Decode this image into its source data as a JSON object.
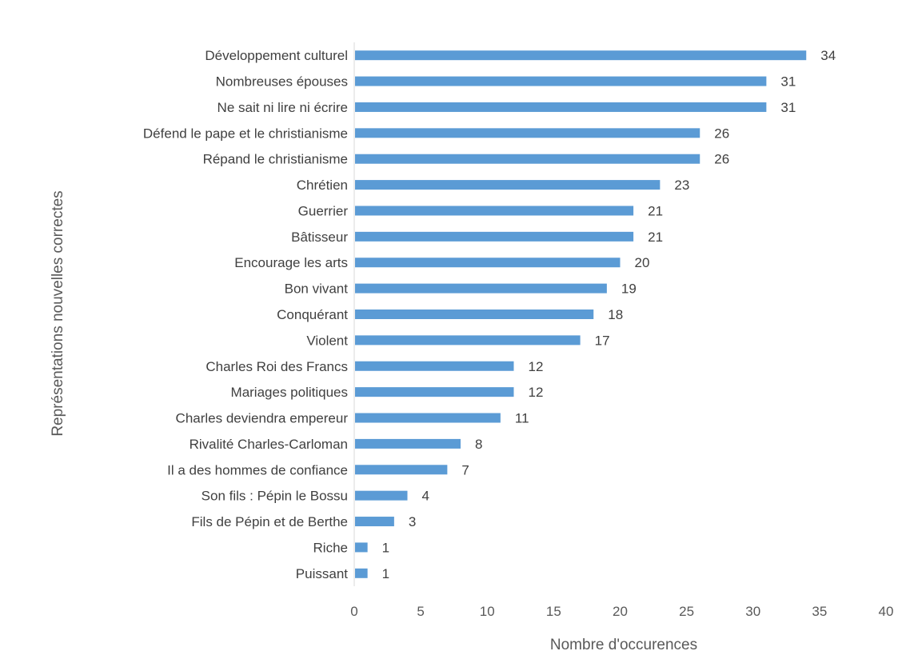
{
  "chart_data": {
    "type": "bar",
    "orientation": "horizontal",
    "title": "",
    "xlabel": "Nombre d'occurences",
    "ylabel": "Représentations nouvelles correctes",
    "xlim": [
      0,
      40
    ],
    "xticks": [
      0,
      5,
      10,
      15,
      20,
      25,
      30,
      35,
      40
    ],
    "grid": false,
    "legend": "none",
    "bar_color": "#5B9BD5",
    "categories": [
      "Développement culturel",
      "Nombreuses épouses",
      "Ne sait ni lire ni écrire",
      "Défend le pape et le christianisme",
      "Répand le christianisme",
      "Chrétien",
      "Guerrier",
      "Bâtisseur",
      "Encourage les arts",
      "Bon vivant",
      "Conquérant",
      "Violent",
      "Charles Roi des Francs",
      "Mariages politiques",
      "Charles deviendra empereur",
      "Rivalité Charles-Carloman",
      "Il a des hommes de confiance",
      "Son fils : Pépin le Bossu",
      "Fils de Pépin et de Berthe",
      "Riche",
      "Puissant"
    ],
    "values": [
      34,
      31,
      31,
      26,
      26,
      23,
      21,
      21,
      20,
      19,
      18,
      17,
      12,
      12,
      11,
      8,
      7,
      4,
      3,
      1,
      1
    ]
  }
}
